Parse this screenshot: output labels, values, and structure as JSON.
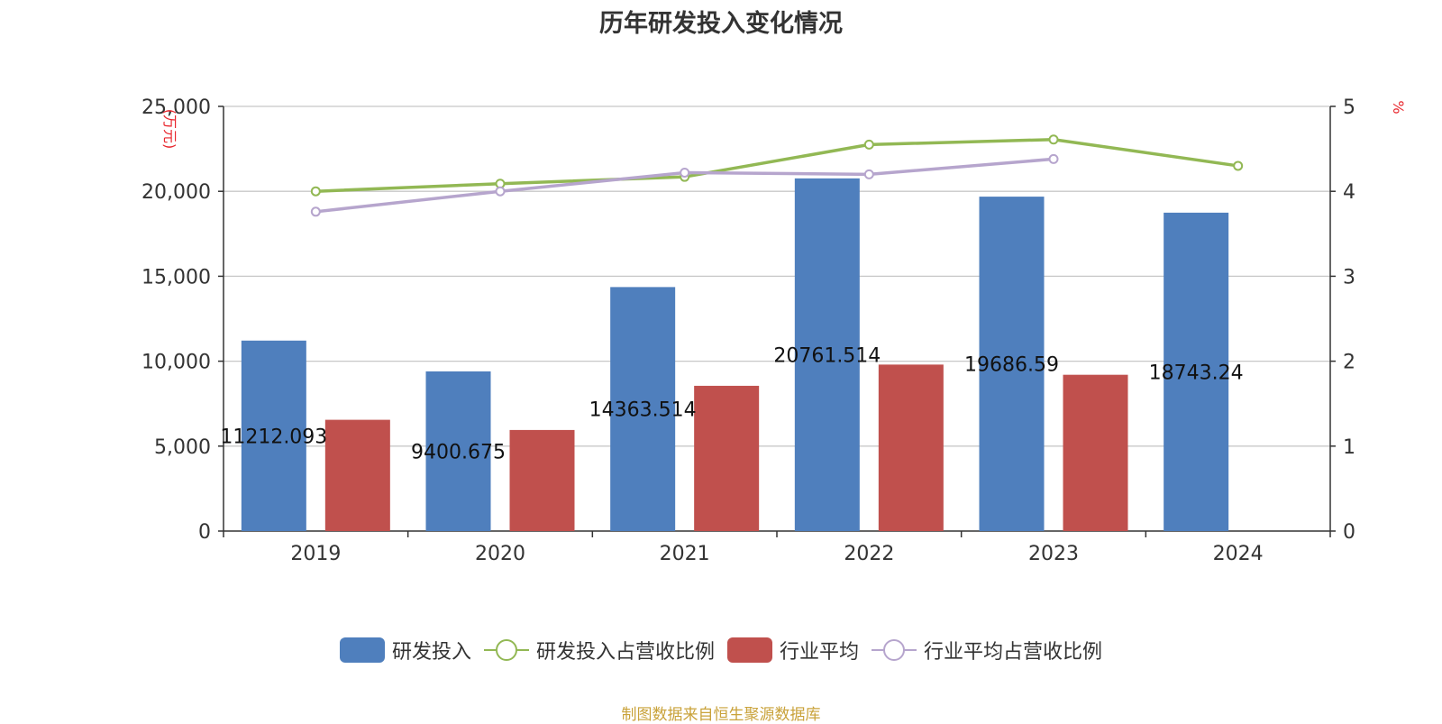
{
  "chart_data": {
    "type": "bar",
    "title": "历年研发投入变化情况",
    "categories": [
      "2019",
      "2020",
      "2021",
      "2022",
      "2023",
      "2024"
    ],
    "series": [
      {
        "name": "研发投入",
        "kind": "bar",
        "axis": "left",
        "color": "#4f7fbd",
        "values": [
          11212.093,
          9400.675,
          14363.514,
          20761.514,
          19686.59,
          18743.24
        ],
        "labels": [
          "11212.093",
          "9400.675",
          "14363.514",
          "20761.514",
          "19686.59",
          "18743.24"
        ]
      },
      {
        "name": "研发投入占营收比例",
        "kind": "line",
        "axis": "right",
        "color": "#92b854",
        "values": [
          4.0,
          4.09,
          4.17,
          4.55,
          4.61,
          4.3
        ]
      },
      {
        "name": "行业平均",
        "kind": "bar",
        "axis": "left",
        "color": "#c0504d",
        "values": [
          6550,
          5950,
          8550,
          9800,
          9200,
          null
        ]
      },
      {
        "name": "行业平均占营收比例",
        "kind": "line",
        "axis": "right",
        "color": "#b6a5cd",
        "values": [
          3.76,
          4.0,
          4.22,
          4.2,
          4.38,
          null
        ]
      }
    ],
    "y_left": {
      "label": "(万元)",
      "ylim": [
        0,
        25000
      ],
      "ticks": [
        0,
        5000,
        10000,
        15000,
        20000,
        25000
      ],
      "tick_labels": [
        "0",
        "5,000",
        "10,000",
        "15,000",
        "20,000",
        "25,000"
      ]
    },
    "y_right": {
      "label": "%",
      "ylim": [
        0,
        5
      ],
      "ticks": [
        0,
        1,
        2,
        3,
        4,
        5
      ],
      "tick_labels": [
        "0",
        "1",
        "2",
        "3",
        "4",
        "5"
      ]
    },
    "grid": true,
    "legend_position": "bottom",
    "axis_label_color": "#e8262d",
    "source": "制图数据来自恒生聚源数据库"
  }
}
